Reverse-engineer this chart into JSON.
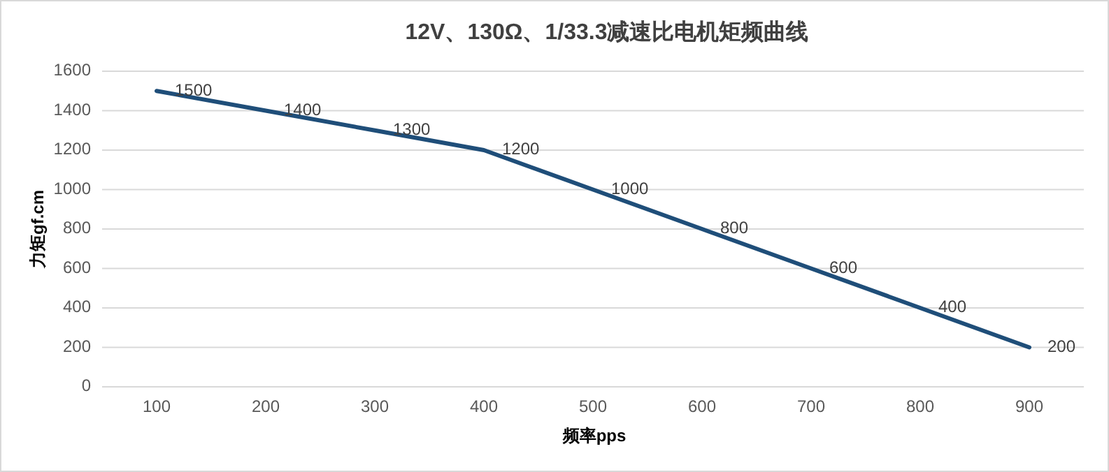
{
  "chart_data": {
    "type": "line",
    "title": "12V、130Ω、1/33.3减速比电机矩频曲线",
    "xlabel": "频率pps",
    "ylabel": "力矩gf.cm",
    "categories": [
      "100",
      "200",
      "300",
      "400",
      "500",
      "600",
      "700",
      "800",
      "900"
    ],
    "series": [
      {
        "color": "#1f4e79",
        "values": [
          1500,
          1400,
          1300,
          1200,
          1000,
          800,
          600,
          400,
          200
        ]
      }
    ],
    "ylim": [
      0,
      1600
    ],
    "yticks": [
      0,
      200,
      400,
      600,
      800,
      1000,
      1200,
      1400,
      1600
    ],
    "grid": "y",
    "data_labels": true,
    "marker": "none",
    "line_style": "solid"
  }
}
